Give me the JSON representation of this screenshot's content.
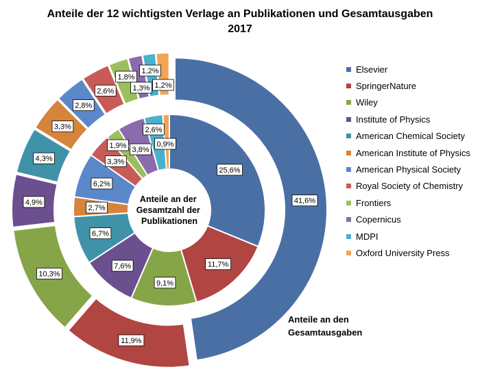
{
  "chart_data": {
    "type": "pie",
    "title_lines": [
      "Anteile der 12 wichtigsten Verlage an Publikationen und Gesamtausgaben",
      "2017"
    ],
    "categories": [
      "Elsevier",
      "SpringerNature",
      "Wiley",
      "Institute of Physics",
      "American Chemical Society",
      "American Institute of Physics",
      "American Physical Society",
      "Royal Society of Chemistry",
      "Frontiers",
      "Copernicus",
      "MDPI",
      "Oxford University Press"
    ],
    "colors": [
      "#4a6fa5",
      "#b04542",
      "#86a548",
      "#6b4f8f",
      "#3f92a8",
      "#d6833b",
      "#5b88c9",
      "#c85b58",
      "#9bbe5e",
      "#8a6bae",
      "#4bb0cc",
      "#f0a555"
    ],
    "series": [
      {
        "name": "Anteile an der Gesamtzahl der Publikationen",
        "ring": "inner",
        "values": [
          25.6,
          11.7,
          9.1,
          7.6,
          6.7,
          2.7,
          6.2,
          3.3,
          1.9,
          3.8,
          2.6,
          0.9
        ],
        "labels": [
          "25,6%",
          "11,7%",
          "9,1%",
          "7,6%",
          "6,7%",
          "2,7%",
          "6,2%",
          "3,3%",
          "1,9%",
          "3,8%",
          "2,6%",
          "0,9%"
        ]
      },
      {
        "name": "Anteile an den Gesamtausgaben",
        "ring": "outer",
        "values": [
          41.6,
          11.9,
          10.3,
          4.9,
          4.3,
          3.3,
          2.8,
          2.6,
          1.8,
          1.3,
          1.2,
          1.2
        ],
        "labels": [
          "41,6%",
          "11,9%",
          "10,3%",
          "4,9%",
          "4,3%",
          "3,3%",
          "2,8%",
          "2,6%",
          "1,8%",
          "1,3%",
          "1,2%",
          "1,2%"
        ]
      }
    ],
    "inner_label_lines": [
      "Anteile an der",
      "Gesamtzahl der",
      "Publikationen"
    ],
    "outer_label_lines": [
      "Anteile an den",
      "Gesamtausgaben"
    ],
    "legend_position": "right"
  }
}
